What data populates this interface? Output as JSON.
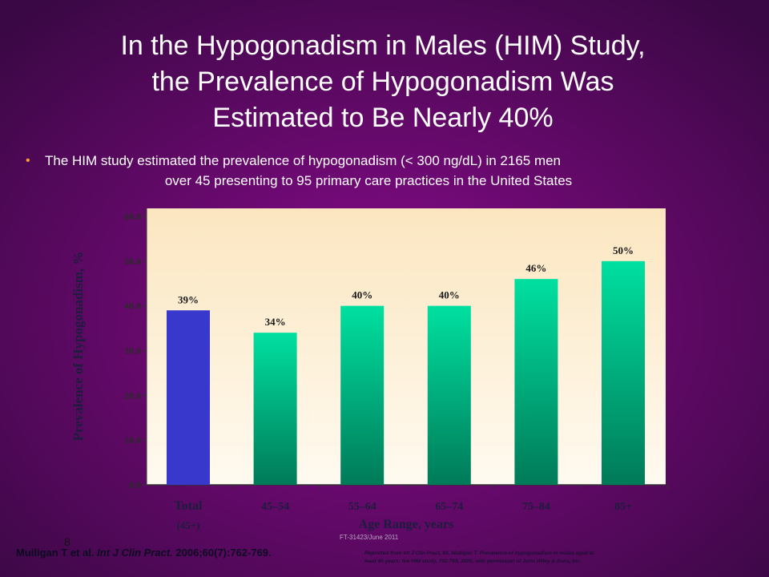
{
  "slide": {
    "title_lines": [
      "In the Hypogonadism in Males (HIM) Study,",
      "the Prevalence of Hypogonadism Was",
      "Estimated to Be Nearly 40%"
    ],
    "bullet_lines": [
      "The HIM study estimated the prevalence of hypogonadism (< 300 ng/dL) in 2165 men",
      "over 45 presenting to 95 primary care practices in the United States"
    ],
    "page_number": "8",
    "code": "FT-31423/June 2011",
    "citation_authors": "Mulligan T et al.",
    "citation_journal": "Int J Clin Pract.",
    "citation_ref": "2006;60(7):762-769.",
    "reprint_lines": [
      "Reprinted from Int J Clin Pract, 60, Mulligan T. Prevalence of hypogonadism in males aged at",
      "least 45 years: the HIM study, 762-769, 2006, with permission of John Wiley & Sons, Inc."
    ]
  },
  "chart_data": {
    "type": "bar",
    "x_label": "Age Range, years",
    "y_label": "Prevalence of Hypogonadism, %",
    "categories": [
      "Total",
      "45–54",
      "55–64",
      "65–74",
      "75–84",
      "85+"
    ],
    "category_sublabels": [
      "(45+)",
      null,
      null,
      null,
      null,
      null
    ],
    "values": [
      39,
      34,
      40,
      40,
      46,
      50
    ],
    "value_labels": [
      "39%",
      "34%",
      "40%",
      "40%",
      "46%",
      "50%"
    ],
    "colors": [
      "#3838cc",
      "#00e0a0",
      "#00e0a0",
      "#00e0a0",
      "#00e0a0",
      "#00e0a0"
    ],
    "gradient_bottom_colors": [
      "#3838cc",
      "#007a58",
      "#007a58",
      "#007a58",
      "#007a58",
      "#007a58"
    ],
    "ylim": [
      0,
      60
    ],
    "yticks": [
      {
        "value": 0,
        "label": "0.0"
      },
      {
        "value": 10,
        "label": "10.0"
      },
      {
        "value": 20,
        "label": "20.0"
      },
      {
        "value": 30,
        "label": "30.0"
      },
      {
        "value": 40,
        "label": "40.0"
      },
      {
        "value": 50,
        "label": "50.0"
      },
      {
        "value": 60,
        "label": "60.0"
      }
    ]
  }
}
